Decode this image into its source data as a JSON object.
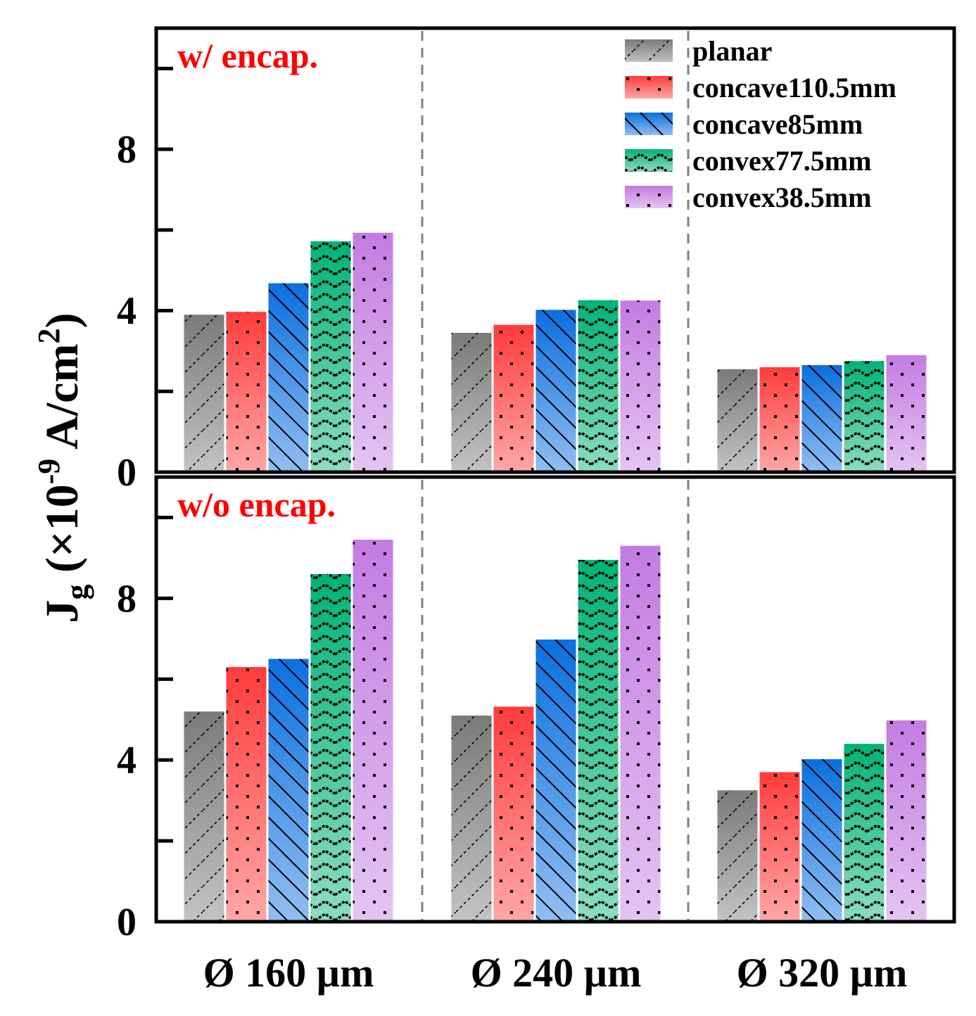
{
  "chart_data": {
    "type": "bar",
    "ylabel": {
      "main": "J",
      "sub": "g",
      "mid": " (×10",
      "exp": "-9",
      "unit": " A/cm",
      "unit_exp": "2",
      "close": ")"
    },
    "categories": [
      "Ø 160 µm",
      "Ø 240 µm",
      "Ø 320 µm"
    ],
    "series_names": [
      "planar",
      "concave110.5mm",
      "concave85mm",
      "convex77.5mm",
      "convex38.5mm"
    ],
    "series_colors": [
      "#7a7a7a",
      "#ff3b3b",
      "#0a6fe0",
      "#00b378",
      "#c47be2"
    ],
    "panels": [
      {
        "label": "w/ encap.",
        "ylim": [
          0,
          11
        ],
        "yticks": [
          0,
          4,
          8
        ],
        "series": [
          {
            "name": "planar",
            "values": [
              3.9,
              3.45,
              2.55
            ]
          },
          {
            "name": "concave110.5mm",
            "values": [
              3.97,
              3.65,
              2.6
            ]
          },
          {
            "name": "concave85mm",
            "values": [
              4.68,
              4.02,
              2.65
            ]
          },
          {
            "name": "convex77.5mm",
            "values": [
              5.72,
              4.26,
              2.75
            ]
          },
          {
            "name": "convex38.5mm",
            "values": [
              5.93,
              4.25,
              2.9
            ]
          }
        ]
      },
      {
        "label": "w/o encap.",
        "ylim": [
          0,
          11
        ],
        "yticks": [
          0,
          4,
          8
        ],
        "series": [
          {
            "name": "planar",
            "values": [
              5.2,
              5.1,
              3.25
            ]
          },
          {
            "name": "concave110.5mm",
            "values": [
              6.3,
              5.32,
              3.7
            ]
          },
          {
            "name": "concave85mm",
            "values": [
              6.5,
              6.98,
              4.02
            ]
          },
          {
            "name": "convex77.5mm",
            "values": [
              8.6,
              8.95,
              4.4
            ]
          },
          {
            "name": "convex38.5mm",
            "values": [
              9.45,
              9.3,
              4.98
            ]
          }
        ]
      }
    ]
  }
}
